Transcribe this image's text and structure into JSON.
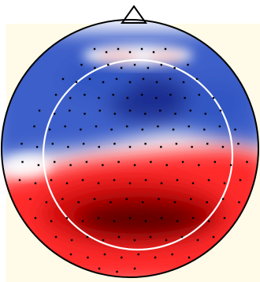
{
  "topomap": {
    "background_color": "#fffbe8",
    "head_outline_color": "#000000",
    "inner_circle_color": "#ffffff",
    "sensor_color": "#000000",
    "colormap": {
      "positive": "#6a0000",
      "positive_mid": "#ff2a2a",
      "neutral": "#ffffff",
      "negative_mid": "#4a6fd8",
      "negative": "#1a2a8a"
    },
    "nose_marker": "triangle-icon"
  }
}
